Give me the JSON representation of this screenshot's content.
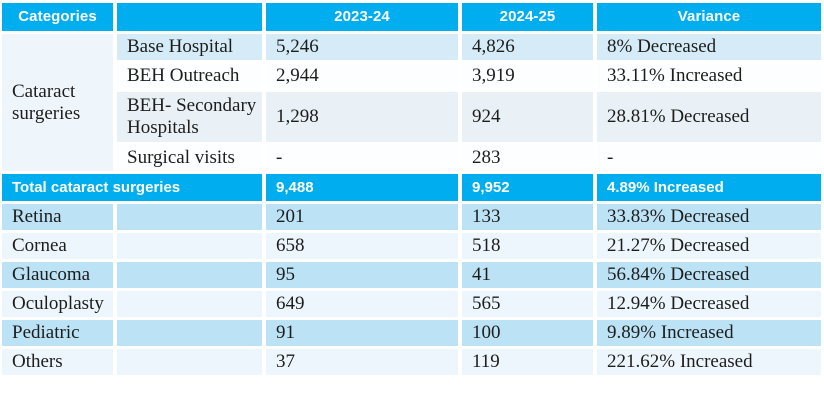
{
  "header": {
    "categories": "Categories",
    "sub_col": "",
    "year1": "2023-24",
    "year2": "2024-25",
    "variance": "Variance"
  },
  "group_label": "Cataract surgeries",
  "cataract_rows": [
    {
      "sub": "Base Hospital",
      "year1": "5,246",
      "year2": "4,826",
      "variance": "8% Decreased"
    },
    {
      "sub": "BEH Outreach",
      "year1": "2,944",
      "year2": "3,919",
      "variance": "33.11% Increased"
    },
    {
      "sub": "BEH- Secondary Hospitals",
      "year1": "1,298",
      "year2": "924",
      "variance": "28.81% Decreased"
    },
    {
      "sub": "Surgical visits",
      "year1": "-",
      "year2": "283",
      "variance": "-"
    }
  ],
  "total": {
    "label": "Total cataract surgeries",
    "year1": "9,488",
    "year2": "9,952",
    "variance": "4.89% Increased"
  },
  "specialties": [
    {
      "label": "Retina",
      "year1": "201",
      "year2": "133",
      "variance": "33.83% Decreased"
    },
    {
      "label": "Cornea",
      "year1": "658",
      "year2": "518",
      "variance": "21.27% Decreased"
    },
    {
      "label": "Glaucoma",
      "year1": "95",
      "year2": "41",
      "variance": "56.84% Decreased"
    },
    {
      "label": "Oculoplasty",
      "year1": "649",
      "year2": "565",
      "variance": "12.94% Decreased"
    },
    {
      "label": "Pediatric",
      "year1": "91",
      "year2": "100",
      "variance": "9.89% Increased"
    },
    {
      "label": "Others",
      "year1": "37",
      "year2": "119",
      "variance": "221.62% Increased"
    }
  ],
  "colors": {
    "header_bg": "#00AEEF",
    "total_row_bg": "#00AEEF",
    "header_text": "#FFFFFF",
    "row_light_blue": "#D5ECF8",
    "row_near_white": "#FDFEFF",
    "row_secondary_tint": "#E9F1F7",
    "row_alt_blue": "#BCE2F5",
    "row_alt_pale": "#EDF6FC",
    "body_text": "#1D1D1B"
  }
}
